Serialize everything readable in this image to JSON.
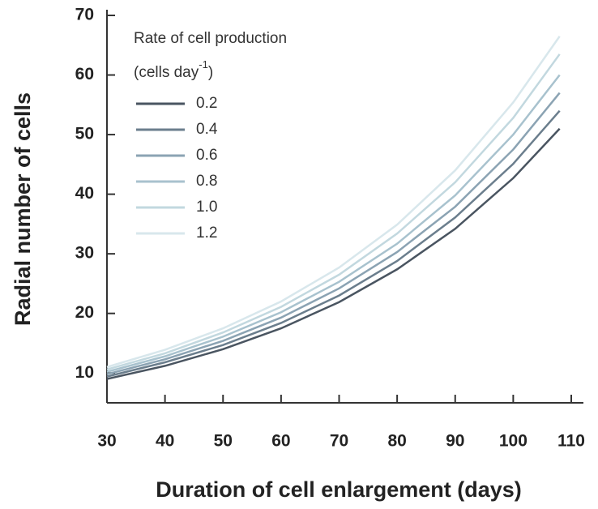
{
  "chart_data": {
    "type": "line",
    "x_label": "Duration of cell enlargement (days)",
    "y_label": "Radial number of cells",
    "legend_title": "Rate of cell production",
    "legend_unit": "(cells day",
    "legend_unit_sup": "-1",
    "legend_unit_end": ")",
    "x": [
      30,
      40,
      50,
      60,
      70,
      80,
      90,
      100,
      108
    ],
    "series": [
      {
        "name": "0.2",
        "color": "#4a5561",
        "values": [
          9.0,
          11.2,
          14.0,
          17.5,
          21.9,
          27.4,
          34.2,
          42.7,
          51.0
        ]
      },
      {
        "name": "0.4",
        "color": "#6b7e8d",
        "values": [
          9.4,
          11.8,
          14.7,
          18.4,
          23.0,
          28.8,
          36.1,
          45.1,
          54.0
        ]
      },
      {
        "name": "0.6",
        "color": "#8ba3b3",
        "values": [
          9.8,
          12.3,
          15.4,
          19.3,
          24.2,
          30.3,
          37.9,
          47.5,
          57.0
        ]
      },
      {
        "name": "0.8",
        "color": "#a8c2ce",
        "values": [
          10.2,
          12.8,
          16.1,
          20.2,
          25.3,
          31.7,
          39.8,
          50.0,
          60.0
        ]
      },
      {
        "name": "1.0",
        "color": "#c2d8df",
        "values": [
          10.6,
          13.3,
          16.8,
          21.1,
          26.5,
          33.4,
          42.0,
          52.8,
          63.5
        ]
      },
      {
        "name": "1.2",
        "color": "#d8e7ec",
        "values": [
          11.0,
          13.9,
          17.5,
          22.0,
          27.7,
          34.9,
          44.0,
          55.4,
          66.5
        ]
      }
    ],
    "xlim": [
      30,
      110
    ],
    "ylim": [
      5,
      70
    ],
    "xticks": [
      30,
      40,
      50,
      60,
      70,
      80,
      90,
      100,
      110
    ],
    "yticks": [
      10,
      20,
      30,
      40,
      50,
      60,
      70
    ],
    "grid": false
  }
}
